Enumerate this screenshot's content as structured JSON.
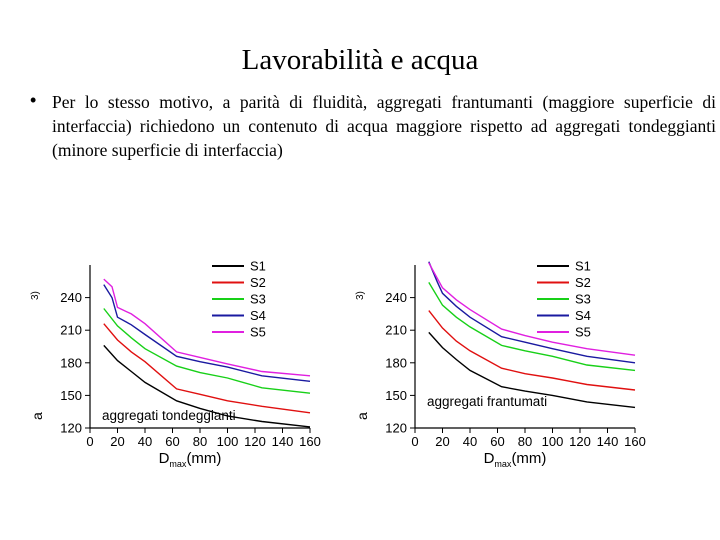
{
  "slide": {
    "title": "Lavorabilità e acqua",
    "bullet_symbol": "•",
    "bullet_text": "Per lo stesso motivo, a parità di fluidità, aggregati frantumanti (maggiore superficie di interfaccia) richiedono un contenuto di acqua maggiore rispetto ad aggregati tondeggianti (minore superficie di interfaccia)"
  },
  "chart_data": [
    {
      "type": "line",
      "annotation": "aggregati tondeggianti",
      "xlabel_main": "D",
      "xlabel_sub": "max",
      "xlabel_unit": "(mm)",
      "ylabel_fragment": "3)",
      "ylabel_fragment_lower": "a",
      "xlim": [
        0,
        160
      ],
      "ylim": [
        120,
        270
      ],
      "x_ticks": [
        0,
        20,
        40,
        60,
        80,
        100,
        120,
        140,
        160
      ],
      "y_ticks": [
        120,
        150,
        180,
        210,
        240
      ],
      "legend_position": "top-right",
      "colors": {
        "S1": "#000000",
        "S2": "#e01010",
        "S3": "#18d018",
        "S4": "#1a1aa0",
        "S5": "#e020e0"
      },
      "series": [
        {
          "name": "S1",
          "x": [
            10,
            20,
            30,
            40,
            63,
            80,
            100,
            125,
            160
          ],
          "y": [
            196,
            182,
            172,
            162,
            145,
            138,
            131,
            126,
            121
          ]
        },
        {
          "name": "S2",
          "x": [
            10,
            20,
            30,
            40,
            63,
            80,
            100,
            125,
            160
          ],
          "y": [
            216,
            201,
            190,
            181,
            156,
            151,
            145,
            140,
            134
          ]
        },
        {
          "name": "S3",
          "x": [
            10,
            20,
            30,
            40,
            63,
            80,
            100,
            125,
            160
          ],
          "y": [
            230,
            214,
            203,
            193,
            177,
            171,
            166,
            157,
            152
          ]
        },
        {
          "name": "S4",
          "x": [
            10,
            16,
            20,
            30,
            40,
            63,
            80,
            100,
            125,
            160
          ],
          "y": [
            252,
            240,
            222,
            215,
            206,
            186,
            181,
            176,
            168,
            163
          ]
        },
        {
          "name": "S5",
          "x": [
            10,
            16,
            20,
            30,
            40,
            63,
            80,
            100,
            125,
            160
          ],
          "y": [
            257,
            250,
            231,
            225,
            216,
            190,
            185,
            179,
            172,
            168
          ]
        }
      ]
    },
    {
      "type": "line",
      "annotation": "aggregati frantumati",
      "xlabel_main": "D",
      "xlabel_sub": "max",
      "xlabel_unit": "(mm)",
      "ylabel_fragment": "3)",
      "ylabel_fragment_lower": "a",
      "xlim": [
        0,
        160
      ],
      "ylim": [
        120,
        270
      ],
      "x_ticks": [
        0,
        20,
        40,
        60,
        80,
        100,
        120,
        140,
        160
      ],
      "y_ticks": [
        120,
        150,
        180,
        210,
        240
      ],
      "legend_position": "top-right",
      "colors": {
        "S1": "#000000",
        "S2": "#e01010",
        "S3": "#18d018",
        "S4": "#1a1aa0",
        "S5": "#e020e0"
      },
      "series": [
        {
          "name": "S1",
          "x": [
            10,
            20,
            30,
            40,
            63,
            80,
            100,
            125,
            160
          ],
          "y": [
            208,
            194,
            183,
            173,
            158,
            154,
            150,
            144,
            139
          ]
        },
        {
          "name": "S2",
          "x": [
            10,
            20,
            30,
            40,
            63,
            80,
            100,
            125,
            160
          ],
          "y": [
            228,
            212,
            200,
            191,
            175,
            170,
            166,
            160,
            155
          ]
        },
        {
          "name": "S3",
          "x": [
            10,
            20,
            30,
            40,
            63,
            80,
            100,
            125,
            160
          ],
          "y": [
            254,
            233,
            222,
            213,
            196,
            191,
            186,
            178,
            173
          ]
        },
        {
          "name": "S4",
          "x": [
            10,
            16,
            20,
            30,
            40,
            63,
            80,
            100,
            125,
            160
          ],
          "y": [
            275,
            255,
            244,
            232,
            222,
            204,
            199,
            193,
            186,
            180
          ]
        },
        {
          "name": "S5",
          "x": [
            10,
            20,
            30,
            40,
            63,
            80,
            100,
            125,
            160
          ],
          "y": [
            272,
            249,
            238,
            229,
            211,
            205,
            199,
            193,
            187
          ]
        }
      ]
    }
  ]
}
